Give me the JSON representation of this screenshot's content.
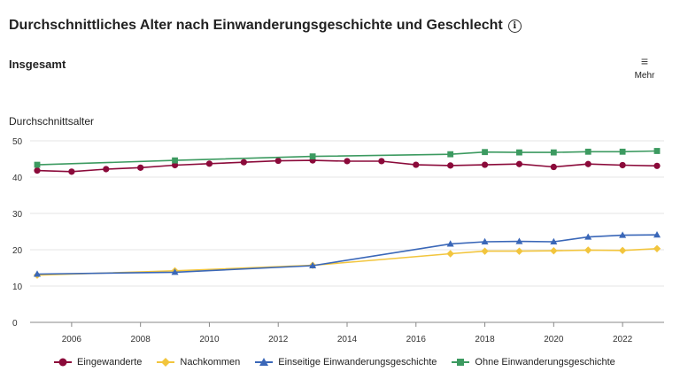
{
  "header": {
    "title": "Durchschnittliches Alter nach Einwanderungsgeschichte und Geschlecht",
    "info_icon": "info-icon",
    "subtitle": "Insgesamt",
    "more_label": "Mehr",
    "more_icon": "menu-icon"
  },
  "chart_data": {
    "type": "line",
    "ylabel": "Durchschnittsalter",
    "xlabel": "",
    "ylim": [
      0,
      50
    ],
    "xlim": [
      2005,
      2023
    ],
    "yticks": [
      0,
      10,
      20,
      30,
      40,
      50
    ],
    "xticks": [
      2006,
      2008,
      2010,
      2012,
      2014,
      2016,
      2018,
      2020,
      2022
    ],
    "grid": "horizontal",
    "legend_position": "bottom",
    "series": [
      {
        "name": "Eingewanderte",
        "color": "#8b0a3a",
        "marker": "circle",
        "x": [
          2005,
          2006,
          2007,
          2008,
          2009,
          2010,
          2011,
          2012,
          2013,
          2014,
          2015,
          2016,
          2017,
          2018,
          2019,
          2020,
          2021,
          2022,
          2023
        ],
        "values": [
          41.8,
          41.5,
          42.2,
          42.6,
          43.3,
          43.7,
          44.1,
          44.5,
          44.6,
          44.4,
          44.4,
          43.4,
          43.2,
          43.4,
          43.6,
          42.8,
          43.6,
          43.3,
          43.1
        ]
      },
      {
        "name": "Nachkommen",
        "color": "#f2c53d",
        "marker": "diamond",
        "x": [
          2005,
          2009,
          2013,
          2017,
          2018,
          2019,
          2020,
          2021,
          2022,
          2023
        ],
        "values": [
          13.0,
          14.2,
          15.7,
          18.9,
          19.6,
          19.6,
          19.7,
          19.9,
          19.8,
          20.3
        ]
      },
      {
        "name": "Einseitige Einwanderungsgeschichte",
        "color": "#3a67b8",
        "marker": "triangle",
        "x": [
          2005,
          2009,
          2013,
          2017,
          2018,
          2019,
          2020,
          2021,
          2022,
          2023
        ],
        "values": [
          13.3,
          13.8,
          15.6,
          21.6,
          22.2,
          22.3,
          22.2,
          23.5,
          24.0,
          24.1
        ]
      },
      {
        "name": "Ohne Einwanderungsgeschichte",
        "color": "#3c9a60",
        "marker": "square",
        "x": [
          2005,
          2009,
          2013,
          2017,
          2018,
          2019,
          2020,
          2021,
          2022,
          2023
        ],
        "values": [
          43.4,
          44.6,
          45.7,
          46.3,
          46.9,
          46.8,
          46.8,
          47.0,
          47.0,
          47.2
        ]
      }
    ]
  }
}
